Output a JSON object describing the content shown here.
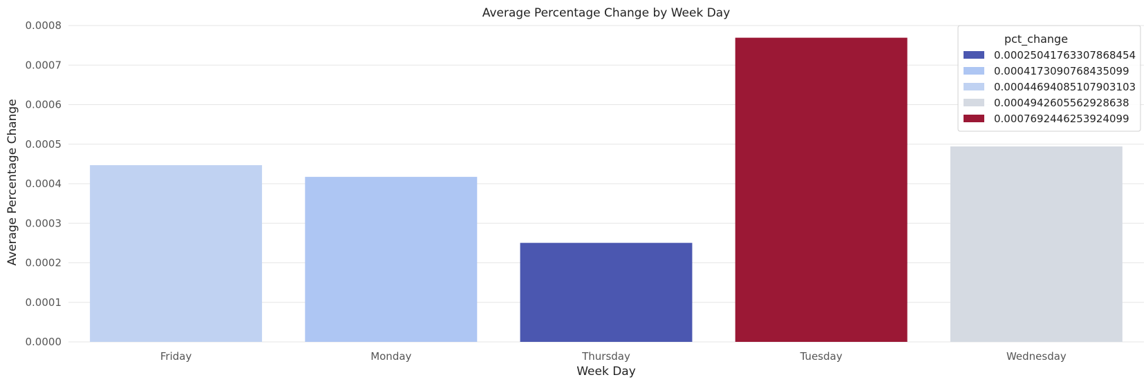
{
  "chart_data": {
    "type": "bar",
    "title": "Average Percentage Change by Week Day",
    "xlabel": "Week Day",
    "ylabel": "Average Percentage Change",
    "categories": [
      "Friday",
      "Monday",
      "Thursday",
      "Tuesday",
      "Wednesday"
    ],
    "values": [
      0.00044694085107903103,
      0.0004173090768435099,
      0.00025041763307868454,
      0.0007692446253924099,
      0.0004942605562928638
    ],
    "colors": [
      "#c0d2f2",
      "#aec6f3",
      "#4b57b0",
      "#9b1835",
      "#d5dae2"
    ],
    "ylim": [
      0,
      0.0008
    ],
    "yticks": [
      "0.0000",
      "0.0001",
      "0.0002",
      "0.0003",
      "0.0004",
      "0.0005",
      "0.0006",
      "0.0007",
      "0.0008"
    ],
    "grid": "horizontal",
    "legend": {
      "title": "pct_change",
      "placement": "top-right",
      "entries": [
        {
          "label": "0.00025041763307868454",
          "color": "#4b57b0"
        },
        {
          "label": "0.0004173090768435099",
          "color": "#aec6f3"
        },
        {
          "label": "0.00044694085107903103",
          "color": "#c0d2f2"
        },
        {
          "label": "0.0004942605562928638",
          "color": "#d5dae2"
        },
        {
          "label": "0.0007692446253924099",
          "color": "#9b1835"
        }
      ]
    }
  }
}
